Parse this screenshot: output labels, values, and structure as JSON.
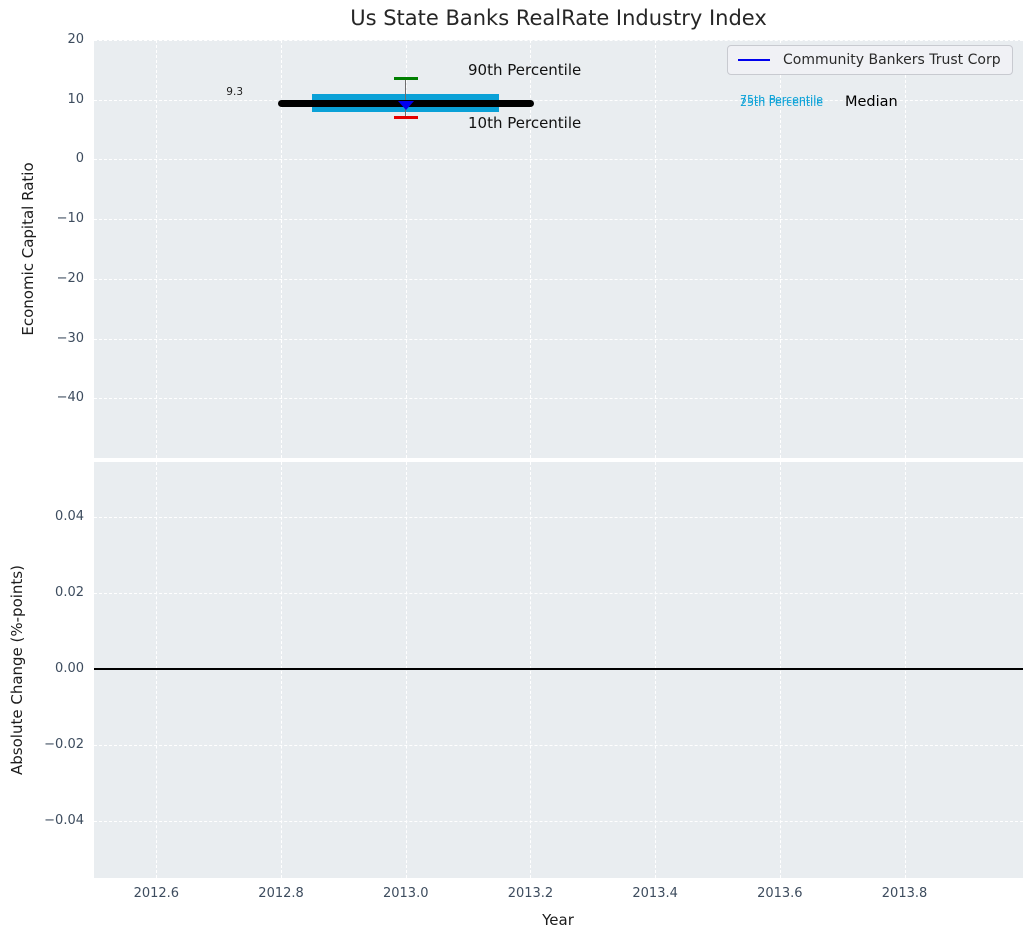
{
  "figure": {
    "title": "Us State Banks RealRate Industry Index"
  },
  "colors": {
    "bg_plot": "#e9edf0",
    "grid": "#ffffff",
    "tick": "#3d4c5e",
    "label": "#1c1c1c",
    "title": "#262626",
    "box": "#0aa1d7",
    "median": "#000000",
    "company": "#0000ee",
    "p90_cap": "#007f00",
    "p10_cap": "#e60000",
    "errorbar": "#6e6e6e",
    "zero_line": "#000000",
    "legend_bg": "#f0f1f5",
    "legend_border": "#c8cad0"
  },
  "legend": {
    "label": "Community Bankers Trust Corp"
  },
  "annotations": {
    "median_value": "9.3",
    "p90": "90th Percentile",
    "p10": "10th Percentile",
    "p75": "75th Percentile",
    "p25": "25th Percentile",
    "median": "Median"
  },
  "chart_data": [
    {
      "type": "box-percentile",
      "title": "Us State Banks RealRate Industry Index",
      "ylabel": "Economic Capital Ratio",
      "xlabel": "",
      "xlim": [
        2012.5,
        2013.99
      ],
      "ylim": [
        -50,
        20
      ],
      "xticks": [
        2012.6,
        2012.8,
        2013.0,
        2013.2,
        2013.4,
        2013.6,
        2013.8
      ],
      "xtick_labels": [
        "2012.6",
        "2012.8",
        "2013.0",
        "2013.2",
        "2013.4",
        "2013.6",
        "2013.8"
      ],
      "yticks": [
        20,
        10,
        0,
        -10,
        -20,
        -30,
        -40
      ],
      "ytick_labels": [
        "20",
        "10",
        "0",
        "−10",
        "−20",
        "−30",
        "−40"
      ],
      "grid": true,
      "legend_position": "upper right",
      "legend_entries": [
        "Community Bankers Trust Corp"
      ],
      "series": {
        "year": 2013.0,
        "median": 9.3,
        "median_line_span": [
          2012.8,
          2013.2
        ],
        "p75": 11.0,
        "p25": 8.0,
        "box_span": [
          2012.85,
          2013.15
        ],
        "p90": 13.5,
        "p10": 7.1,
        "whisker_cap_half_width_years": 0.019,
        "company_name": "Community Bankers Trust Corp",
        "company_value": 9.0,
        "company_marker": "triangle-down"
      }
    },
    {
      "type": "line",
      "ylabel": "Absolute Change (%-points)",
      "xlabel": "Year",
      "xlim": [
        2012.5,
        2013.99
      ],
      "ylim": [
        -0.0549,
        0.0545
      ],
      "xticks": [
        2012.6,
        2012.8,
        2013.0,
        2013.2,
        2013.4,
        2013.6,
        2013.8
      ],
      "xtick_labels": [
        "2012.6",
        "2012.8",
        "2013.0",
        "2013.2",
        "2013.4",
        "2013.6",
        "2013.8"
      ],
      "yticks": [
        0.04,
        0.02,
        0.0,
        -0.02,
        -0.04
      ],
      "ytick_labels": [
        "0.04",
        "0.02",
        "0.00",
        "−0.02",
        "−0.04"
      ],
      "grid": true,
      "zero_line": 0.0,
      "series": []
    }
  ]
}
